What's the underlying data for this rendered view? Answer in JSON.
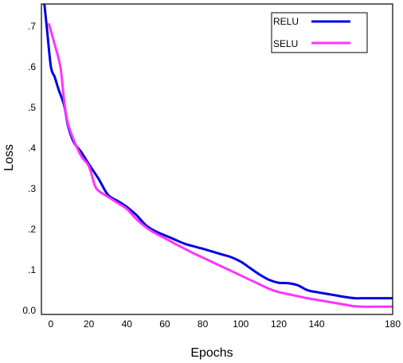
{
  "chart_data": {
    "type": "line",
    "xlabel": "Epochs",
    "ylabel": "Loss",
    "xlim": [
      -5,
      180
    ],
    "ylim": [
      -0.01,
      0.755
    ],
    "x_ticks": [
      {
        "value": 0,
        "label": "0"
      },
      {
        "value": 20,
        "label": "20"
      },
      {
        "value": 40,
        "label": "40"
      },
      {
        "value": 60,
        "label": "60"
      },
      {
        "value": 80,
        "label": "80"
      },
      {
        "value": 100,
        "label": "100"
      },
      {
        "value": 120,
        "label": "120"
      },
      {
        "value": 140,
        "label": "140"
      },
      {
        "value": 180,
        "label": "180"
      }
    ],
    "y_ticks": [
      {
        "value": 0.0,
        "label": "0.0"
      },
      {
        "value": 0.1,
        "label": ".1"
      },
      {
        "value": 0.2,
        "label": ".2"
      },
      {
        "value": 0.3,
        "label": ".3"
      },
      {
        "value": 0.4,
        "label": ".4"
      },
      {
        "value": 0.5,
        "label": ".5"
      },
      {
        "value": 0.6,
        "label": ".6"
      },
      {
        "value": 0.7,
        "label": ".7"
      }
    ],
    "grid": false,
    "legend": "top-right",
    "series": [
      {
        "name": "RELU",
        "color": "#0000e0",
        "x": [
          -4,
          -2,
          0,
          2,
          4,
          7,
          9,
          12,
          16,
          20,
          25,
          30,
          35,
          40,
          45,
          50,
          55,
          60,
          65,
          70,
          75,
          80,
          85,
          90,
          95,
          100,
          105,
          110,
          115,
          120,
          125,
          130,
          135,
          140,
          145,
          150,
          155,
          160,
          165,
          170,
          175,
          180
        ],
        "y": [
          0.78,
          0.69,
          0.6,
          0.575,
          0.545,
          0.505,
          0.455,
          0.415,
          0.39,
          0.36,
          0.325,
          0.285,
          0.27,
          0.255,
          0.235,
          0.21,
          0.195,
          0.185,
          0.175,
          0.165,
          0.158,
          0.152,
          0.145,
          0.138,
          0.131,
          0.12,
          0.104,
          0.088,
          0.075,
          0.068,
          0.067,
          0.062,
          0.05,
          0.045,
          0.041,
          0.037,
          0.033,
          0.03,
          0.03,
          0.03,
          0.03,
          0.03
        ]
      },
      {
        "name": "SELU",
        "color": "#ff33ff",
        "x": [
          -1,
          2,
          5,
          7,
          9,
          12,
          16,
          20,
          23,
          25,
          30,
          35,
          40,
          45,
          50,
          55,
          60,
          65,
          70,
          75,
          80,
          85,
          90,
          95,
          100,
          105,
          110,
          115,
          120,
          125,
          130,
          135,
          140,
          145,
          150,
          155,
          160,
          165,
          170,
          175,
          180
        ],
        "y": [
          0.705,
          0.655,
          0.6,
          0.515,
          0.46,
          0.42,
          0.38,
          0.355,
          0.31,
          0.295,
          0.28,
          0.265,
          0.25,
          0.225,
          0.205,
          0.19,
          0.178,
          0.165,
          0.153,
          0.141,
          0.13,
          0.119,
          0.108,
          0.097,
          0.086,
          0.075,
          0.064,
          0.053,
          0.045,
          0.04,
          0.035,
          0.03,
          0.026,
          0.022,
          0.018,
          0.014,
          0.01,
          0.009,
          0.009,
          0.009,
          0.009
        ]
      }
    ]
  }
}
